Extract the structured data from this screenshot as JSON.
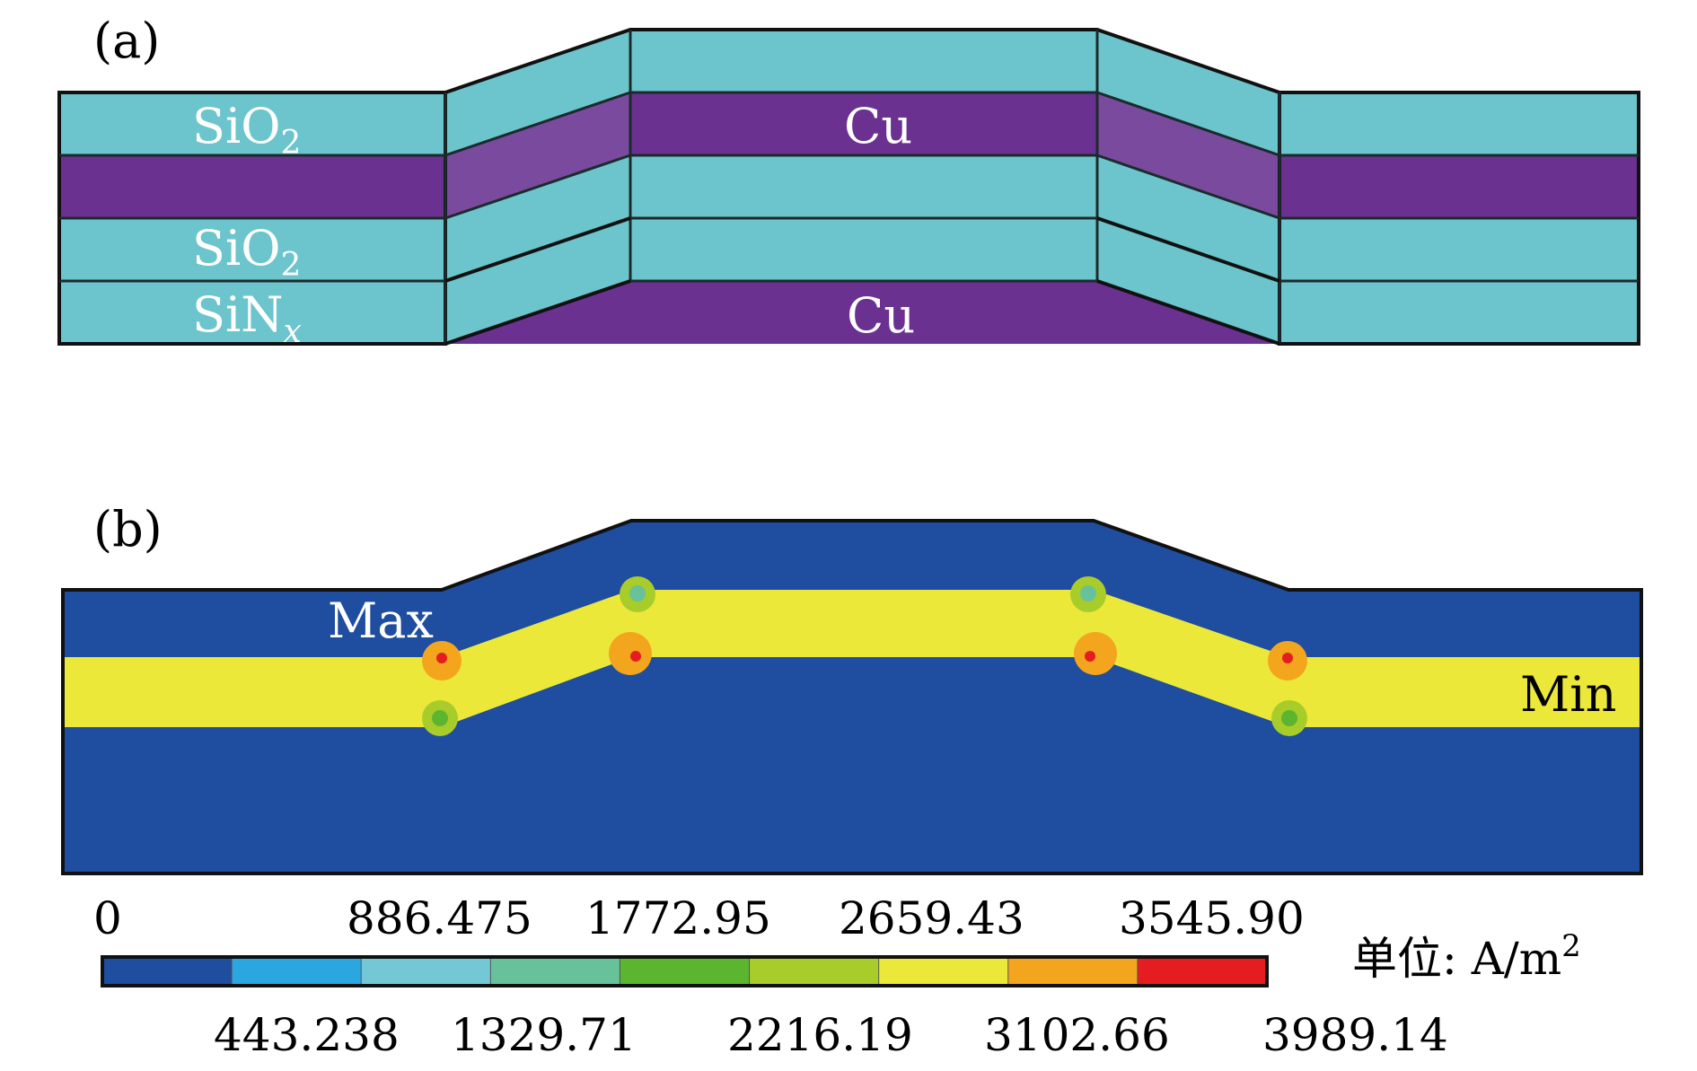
{
  "panel_a": {
    "label": "(a)",
    "layers": {
      "sio2_top": "SiO",
      "sio2_top_sub": "2",
      "cu_upper": "Cu",
      "sio2_mid": "SiO",
      "sio2_mid_sub": "2",
      "sinx": "SiN",
      "sinx_sub": "x",
      "cu_lower": "Cu"
    },
    "colors": {
      "oxide": "#6cc4cc",
      "copper": "#6a3191",
      "copper_overlap": "#7a4a9e"
    }
  },
  "panel_b": {
    "label": "(b)",
    "max_label": "Max",
    "min_label": "Min",
    "colors": {
      "background_field": "#1f4d9f",
      "conductor_field": "#ebe83a"
    }
  },
  "colorbar": {
    "unit_prefix": "单位: ",
    "unit": "A/m",
    "unit_sup": "2",
    "top_ticks": [
      "0",
      "886.475",
      "1772.95",
      "2659.43",
      "3545.90"
    ],
    "bottom_ticks": [
      "443.238",
      "1329.71",
      "2216.19",
      "3102.66",
      "3989.14"
    ],
    "colors": [
      "#1f4d9f",
      "#2aa6e0",
      "#74c8d6",
      "#67c19a",
      "#5cb52f",
      "#a8cc2a",
      "#ebe83a",
      "#f2a51d",
      "#e51d21"
    ]
  }
}
